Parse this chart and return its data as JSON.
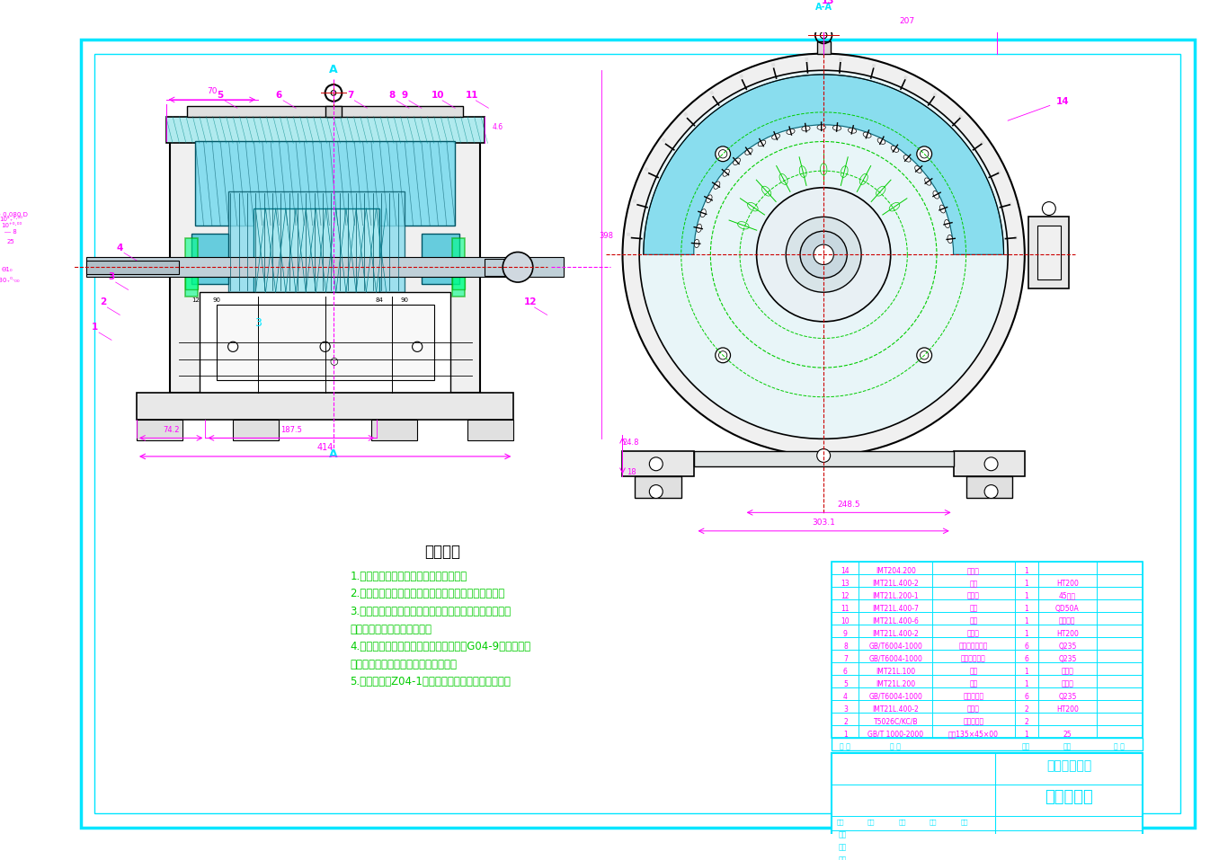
{
  "bg_color": "#ffffff",
  "border_color": "#00bfff",
  "magenta": "#ff00ff",
  "cyan": "#00e5ff",
  "green": "#00cc00",
  "dark_line": "#000000",
  "nav": "#000080",
  "red_dash": "#cc0000",
  "tech_title": "技术要求",
  "tech_requirements": [
    "1.电机壳成型好，无夹渣、凹坑等缺陷；",
    "2.轴承安装应按《轴承清洗与安装技术条件》的规定；",
    "3.当电机线段字母顺序与端电压相序同方向时，从主轴视",
    "之，其旋转方向应为顺时针；",
    "4.电机外表面（除轴伸及底脚平面外）噴G04-9过氯乙烯磁",
    "漆，并应符合《油漆途饰技术条件》；",
    "5.轴伸防锈用Z04-1置换型防锈脂，并塑料套防护。"
  ],
  "school": "河南科技大学",
  "drawing_title": "电机总装图",
  "parts_rows": [
    [
      "14",
      "IMT204.200",
      "机壳盖",
      "1",
      "",
      ""
    ],
    [
      "13",
      "IMT21L.400-2",
      "局序",
      "1",
      "HT200",
      ""
    ],
    [
      "12",
      "IMT21L.200-1",
      "符序枝",
      "1",
      "45号钢",
      ""
    ],
    [
      "11",
      "IMT21L.400-7",
      "局面",
      "1",
      "QD50A",
      ""
    ],
    [
      "10",
      "IMT21L.400-6",
      "风扇",
      "1",
      "工业材料",
      ""
    ],
    [
      "9",
      "IMT21L.400-2",
      "机头盖",
      "1",
      "HT200",
      ""
    ],
    [
      "8",
      "GB/T6004-1000",
      "内六角圆头螺钉",
      "6",
      "Q235",
      ""
    ],
    [
      "7",
      "GB/T6004-1000",
      "开槽盘头蚺钉",
      "6",
      "Q235",
      ""
    ],
    [
      "6",
      "IMT21L.100",
      "定子",
      "1",
      "组合件",
      ""
    ],
    [
      "5",
      "IMT21L.200",
      "转子",
      "1",
      "组合件",
      ""
    ],
    [
      "4",
      "GB/T6004-1000",
      "大内六角钉",
      "6",
      "Q235",
      ""
    ],
    [
      "3",
      "IMT21L.400-2",
      "机头盖",
      "2",
      "HT200",
      ""
    ],
    [
      "2",
      "T5026C/KC/B",
      "深沟球轴承",
      "2",
      "",
      ""
    ],
    [
      "1",
      "GB/T 1000-2000",
      "钉键135×45×00",
      "1",
      "25",
      ""
    ]
  ]
}
